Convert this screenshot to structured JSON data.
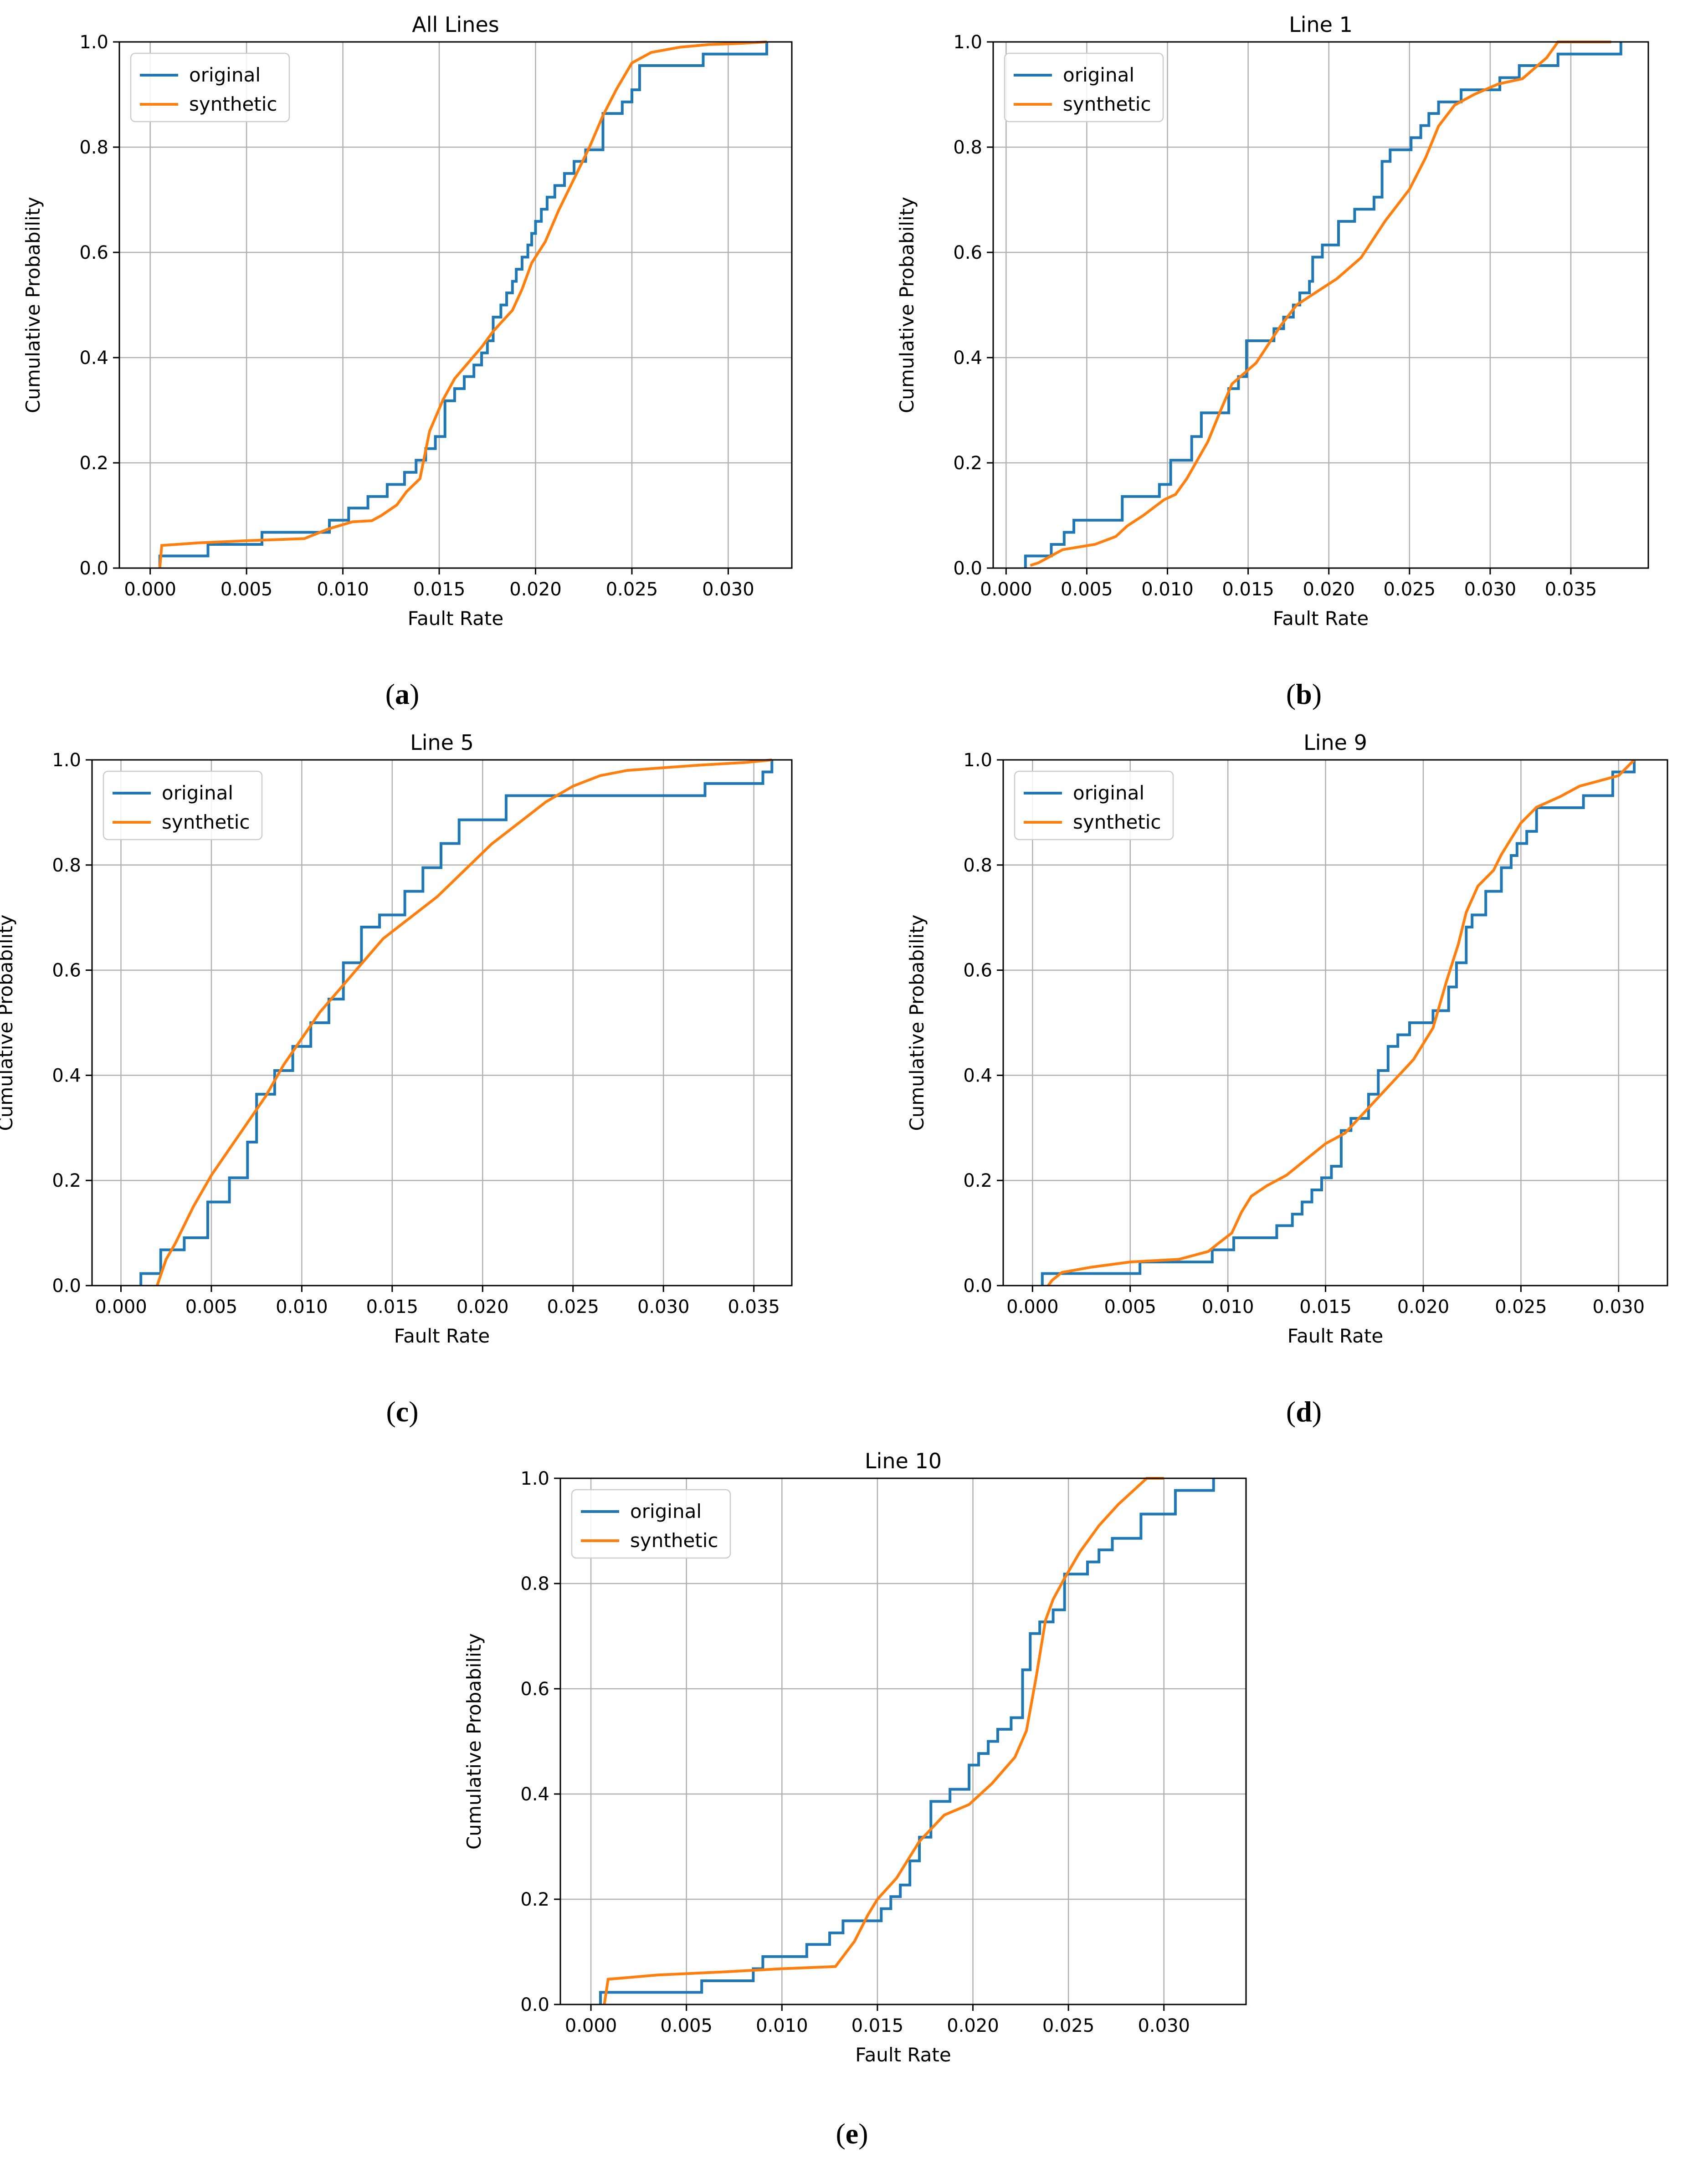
{
  "figure": {
    "panel_labels": [
      {
        "open": "(",
        "letter": "a",
        "close": ")"
      },
      {
        "open": "(",
        "letter": "b",
        "close": ")"
      },
      {
        "open": "(",
        "letter": "c",
        "close": ")"
      },
      {
        "open": "(",
        "letter": "d",
        "close": ")"
      },
      {
        "open": "(",
        "letter": "e",
        "close": ")"
      }
    ]
  },
  "colors": {
    "original": "#1f77b4",
    "synthetic": "#ff7f0e",
    "grid": "#b0b0b0"
  },
  "chart_data": [
    {
      "type": "line",
      "title": "All Lines",
      "xlabel": "Fault Rate",
      "ylabel": "Cumulative Probability",
      "xlim": [
        -0.0016,
        0.0333
      ],
      "ylim": [
        0.0,
        1.0
      ],
      "xticks": [
        0.0,
        0.005,
        0.01,
        0.015,
        0.02,
        0.025,
        0.03
      ],
      "xtick_labels": [
        "0.000",
        "0.005",
        "0.010",
        "0.015",
        "0.020",
        "0.025",
        "0.030"
      ],
      "yticks": [
        0.0,
        0.2,
        0.4,
        0.6,
        0.8,
        1.0
      ],
      "ytick_labels": [
        "0.0",
        "0.2",
        "0.4",
        "0.6",
        "0.8",
        "1.0"
      ],
      "grid": true,
      "legend": "top-left",
      "series": [
        {
          "name": "original",
          "style": "step",
          "x": [
            0.0005,
            0.0005,
            0.003,
            0.0058,
            0.0093,
            0.0103,
            0.0113,
            0.0123,
            0.0132,
            0.0138,
            0.0143,
            0.0148,
            0.0153,
            0.0158,
            0.0163,
            0.0168,
            0.0172,
            0.0175,
            0.0178,
            0.0182,
            0.0185,
            0.0188,
            0.019,
            0.0193,
            0.0196,
            0.0198,
            0.02,
            0.0203,
            0.0206,
            0.021,
            0.0215,
            0.022,
            0.0226,
            0.0235,
            0.0245,
            0.025,
            0.0254,
            0.0287,
            0.032
          ],
          "y": [
            0.0,
            0.023,
            0.045,
            0.068,
            0.091,
            0.114,
            0.136,
            0.159,
            0.182,
            0.205,
            0.227,
            0.25,
            0.318,
            0.341,
            0.364,
            0.386,
            0.409,
            0.432,
            0.477,
            0.5,
            0.523,
            0.545,
            0.568,
            0.591,
            0.614,
            0.636,
            0.659,
            0.682,
            0.705,
            0.727,
            0.75,
            0.773,
            0.795,
            0.864,
            0.886,
            0.909,
            0.955,
            0.977,
            1.0
          ]
        },
        {
          "name": "synthetic",
          "style": "line",
          "x": [
            0.0005,
            0.0006,
            0.0025,
            0.005,
            0.008,
            0.0093,
            0.0105,
            0.0115,
            0.012,
            0.0128,
            0.0133,
            0.014,
            0.0145,
            0.0152,
            0.0158,
            0.0165,
            0.0172,
            0.0178,
            0.0183,
            0.0188,
            0.0193,
            0.0198,
            0.0205,
            0.0212,
            0.022,
            0.0228,
            0.0235,
            0.0242,
            0.025,
            0.026,
            0.0275,
            0.029,
            0.0305,
            0.032
          ],
          "y": [
            0.0,
            0.043,
            0.048,
            0.052,
            0.056,
            0.075,
            0.088,
            0.09,
            0.1,
            0.12,
            0.145,
            0.17,
            0.26,
            0.32,
            0.36,
            0.39,
            0.42,
            0.45,
            0.47,
            0.49,
            0.53,
            0.58,
            0.62,
            0.68,
            0.74,
            0.8,
            0.86,
            0.91,
            0.96,
            0.98,
            0.99,
            0.995,
            0.997,
            1.0
          ]
        }
      ]
    },
    {
      "type": "line",
      "title": "Line 1",
      "xlabel": "Fault Rate",
      "ylabel": "Cumulative Probability",
      "xlim": [
        -0.0008,
        0.0398
      ],
      "ylim": [
        0.0,
        1.0
      ],
      "xticks": [
        0.0,
        0.005,
        0.01,
        0.015,
        0.02,
        0.025,
        0.03,
        0.035
      ],
      "xtick_labels": [
        "0.000",
        "0.005",
        "0.010",
        "0.015",
        "0.020",
        "0.025",
        "0.030",
        "0.035"
      ],
      "yticks": [
        0.0,
        0.2,
        0.4,
        0.6,
        0.8,
        1.0
      ],
      "ytick_labels": [
        "0.0",
        "0.2",
        "0.4",
        "0.6",
        "0.8",
        "1.0"
      ],
      "grid": true,
      "legend": "top-left",
      "series": [
        {
          "name": "original",
          "style": "step",
          "x": [
            0.0012,
            0.0012,
            0.0028,
            0.0036,
            0.0042,
            0.0072,
            0.0095,
            0.0102,
            0.0115,
            0.0121,
            0.0138,
            0.0144,
            0.0149,
            0.0166,
            0.0172,
            0.0178,
            0.0182,
            0.0188,
            0.019,
            0.0196,
            0.0206,
            0.0216,
            0.0228,
            0.0233,
            0.0238,
            0.0251,
            0.0257,
            0.0262,
            0.0268,
            0.0282,
            0.0306,
            0.0318,
            0.0342,
            0.0365,
            0.0381
          ],
          "y": [
            0.0,
            0.023,
            0.045,
            0.068,
            0.091,
            0.136,
            0.159,
            0.205,
            0.25,
            0.295,
            0.341,
            0.364,
            0.432,
            0.455,
            0.477,
            0.5,
            0.523,
            0.545,
            0.591,
            0.614,
            0.659,
            0.682,
            0.705,
            0.773,
            0.795,
            0.818,
            0.841,
            0.864,
            0.886,
            0.909,
            0.932,
            0.955,
            0.977,
            0.977,
            1.0
          ]
        },
        {
          "name": "synthetic",
          "style": "line",
          "x": [
            0.0015,
            0.002,
            0.0035,
            0.0055,
            0.0068,
            0.0075,
            0.0085,
            0.0098,
            0.0105,
            0.0112,
            0.0125,
            0.0133,
            0.014,
            0.0155,
            0.017,
            0.018,
            0.019,
            0.0205,
            0.022,
            0.0235,
            0.025,
            0.026,
            0.0268,
            0.0278,
            0.029,
            0.0305,
            0.032,
            0.0335,
            0.0342,
            0.036,
            0.0375
          ],
          "y": [
            0.005,
            0.01,
            0.035,
            0.045,
            0.06,
            0.08,
            0.1,
            0.13,
            0.14,
            0.17,
            0.24,
            0.3,
            0.35,
            0.39,
            0.46,
            0.5,
            0.52,
            0.55,
            0.59,
            0.66,
            0.72,
            0.78,
            0.84,
            0.88,
            0.9,
            0.92,
            0.93,
            0.97,
            1.0,
            1.0,
            1.0
          ]
        }
      ]
    },
    {
      "type": "line",
      "title": "Line 5",
      "xlabel": "Fault Rate",
      "ylabel": "Cumulative Probability",
      "xlim": [
        -0.0016,
        0.0371
      ],
      "ylim": [
        0.0,
        1.0
      ],
      "xticks": [
        0.0,
        0.005,
        0.01,
        0.015,
        0.02,
        0.025,
        0.03,
        0.035
      ],
      "xtick_labels": [
        "0.000",
        "0.005",
        "0.010",
        "0.015",
        "0.020",
        "0.025",
        "0.030",
        "0.035"
      ],
      "yticks": [
        0.0,
        0.2,
        0.4,
        0.6,
        0.8,
        1.0
      ],
      "ytick_labels": [
        "0.0",
        "0.2",
        "0.4",
        "0.6",
        "0.8",
        "1.0"
      ],
      "grid": true,
      "legend": "top-left",
      "series": [
        {
          "name": "original",
          "style": "step",
          "x": [
            0.0011,
            0.0011,
            0.0022,
            0.0035,
            0.0048,
            0.006,
            0.007,
            0.0075,
            0.0085,
            0.0095,
            0.0105,
            0.0115,
            0.0123,
            0.0133,
            0.0143,
            0.0157,
            0.0167,
            0.0177,
            0.0187,
            0.0213,
            0.0323,
            0.0355,
            0.036
          ],
          "y": [
            0.0,
            0.023,
            0.068,
            0.091,
            0.159,
            0.205,
            0.273,
            0.364,
            0.409,
            0.455,
            0.5,
            0.545,
            0.614,
            0.682,
            0.705,
            0.75,
            0.795,
            0.841,
            0.886,
            0.932,
            0.955,
            0.977,
            1.0
          ]
        },
        {
          "name": "synthetic",
          "style": "line",
          "x": [
            0.002,
            0.0025,
            0.003,
            0.004,
            0.005,
            0.006,
            0.007,
            0.008,
            0.009,
            0.01,
            0.011,
            0.012,
            0.013,
            0.0145,
            0.016,
            0.0175,
            0.019,
            0.0205,
            0.022,
            0.0235,
            0.025,
            0.0265,
            0.028,
            0.03,
            0.032,
            0.0345,
            0.036
          ],
          "y": [
            0.0,
            0.05,
            0.08,
            0.15,
            0.21,
            0.26,
            0.31,
            0.36,
            0.42,
            0.47,
            0.52,
            0.56,
            0.6,
            0.66,
            0.7,
            0.74,
            0.79,
            0.84,
            0.88,
            0.92,
            0.95,
            0.97,
            0.98,
            0.985,
            0.99,
            0.995,
            1.0
          ]
        }
      ]
    },
    {
      "type": "line",
      "title": "Line 9",
      "xlabel": "Fault Rate",
      "ylabel": "Cumulative Probability",
      "xlim": [
        -0.0015,
        0.0325
      ],
      "ylim": [
        0.0,
        1.0
      ],
      "xticks": [
        0.0,
        0.005,
        0.01,
        0.015,
        0.02,
        0.025,
        0.03
      ],
      "xtick_labels": [
        "0.000",
        "0.005",
        "0.010",
        "0.015",
        "0.020",
        "0.025",
        "0.030"
      ],
      "yticks": [
        0.0,
        0.2,
        0.4,
        0.6,
        0.8,
        1.0
      ],
      "ytick_labels": [
        "0.0",
        "0.2",
        "0.4",
        "0.6",
        "0.8",
        "1.0"
      ],
      "grid": true,
      "legend": "top-left",
      "series": [
        {
          "name": "original",
          "style": "step",
          "x": [
            0.0005,
            0.0005,
            0.0055,
            0.0092,
            0.0103,
            0.0125,
            0.0133,
            0.0138,
            0.0143,
            0.0148,
            0.0153,
            0.0158,
            0.0163,
            0.0172,
            0.0177,
            0.0182,
            0.0187,
            0.0193,
            0.0198,
            0.0205,
            0.0213,
            0.0217,
            0.0222,
            0.0225,
            0.0232,
            0.024,
            0.0245,
            0.0248,
            0.0253,
            0.0258,
            0.0282,
            0.0297,
            0.0308
          ],
          "y": [
            0.0,
            0.023,
            0.045,
            0.068,
            0.091,
            0.114,
            0.136,
            0.159,
            0.182,
            0.205,
            0.227,
            0.295,
            0.318,
            0.364,
            0.409,
            0.455,
            0.477,
            0.5,
            0.5,
            0.523,
            0.568,
            0.614,
            0.682,
            0.705,
            0.75,
            0.795,
            0.818,
            0.841,
            0.864,
            0.909,
            0.932,
            0.977,
            1.0
          ]
        },
        {
          "name": "synthetic",
          "style": "line",
          "x": [
            0.0008,
            0.001,
            0.0015,
            0.003,
            0.005,
            0.0075,
            0.009,
            0.0095,
            0.0102,
            0.0107,
            0.0112,
            0.012,
            0.013,
            0.014,
            0.015,
            0.016,
            0.017,
            0.018,
            0.019,
            0.0195,
            0.0205,
            0.0212,
            0.0218,
            0.0222,
            0.0228,
            0.0236,
            0.024,
            0.0245,
            0.025,
            0.0258,
            0.027,
            0.028,
            0.03,
            0.0308
          ],
          "y": [
            0.0,
            0.01,
            0.025,
            0.035,
            0.045,
            0.05,
            0.065,
            0.08,
            0.1,
            0.14,
            0.17,
            0.19,
            0.21,
            0.24,
            0.27,
            0.29,
            0.33,
            0.37,
            0.41,
            0.43,
            0.49,
            0.58,
            0.65,
            0.71,
            0.76,
            0.79,
            0.82,
            0.85,
            0.88,
            0.91,
            0.93,
            0.95,
            0.97,
            1.0
          ]
        }
      ]
    },
    {
      "type": "line",
      "title": "Line 10",
      "xlabel": "Fault Rate",
      "ylabel": "Cumulative Probability",
      "xlim": [
        -0.0016,
        0.0343
      ],
      "ylim": [
        0.0,
        1.0
      ],
      "xticks": [
        0.0,
        0.005,
        0.01,
        0.015,
        0.02,
        0.025,
        0.03
      ],
      "xtick_labels": [
        "0.000",
        "0.005",
        "0.010",
        "0.015",
        "0.020",
        "0.025",
        "0.030"
      ],
      "yticks": [
        0.0,
        0.2,
        0.4,
        0.6,
        0.8,
        1.0
      ],
      "ytick_labels": [
        "0.0",
        "0.2",
        "0.4",
        "0.6",
        "0.8",
        "1.0"
      ],
      "grid": true,
      "legend": "top-left",
      "series": [
        {
          "name": "original",
          "style": "step",
          "x": [
            0.0005,
            0.0005,
            0.003,
            0.0058,
            0.0085,
            0.009,
            0.0113,
            0.0125,
            0.0132,
            0.0152,
            0.0157,
            0.0162,
            0.0167,
            0.0172,
            0.0178,
            0.0188,
            0.0198,
            0.0203,
            0.0208,
            0.0213,
            0.022,
            0.0226,
            0.023,
            0.0235,
            0.0242,
            0.0248,
            0.0254,
            0.026,
            0.0266,
            0.0273,
            0.0288,
            0.0306,
            0.0326
          ],
          "y": [
            0.0,
            0.023,
            0.023,
            0.045,
            0.068,
            0.091,
            0.114,
            0.136,
            0.159,
            0.182,
            0.205,
            0.227,
            0.273,
            0.318,
            0.386,
            0.409,
            0.455,
            0.477,
            0.5,
            0.523,
            0.545,
            0.636,
            0.705,
            0.727,
            0.75,
            0.818,
            0.818,
            0.841,
            0.864,
            0.886,
            0.932,
            0.977,
            1.0
          ]
        },
        {
          "name": "synthetic",
          "style": "line",
          "x": [
            0.0007,
            0.0009,
            0.0035,
            0.007,
            0.01,
            0.0128,
            0.0138,
            0.0145,
            0.015,
            0.016,
            0.0172,
            0.0185,
            0.0198,
            0.021,
            0.0222,
            0.0228,
            0.0233,
            0.0238,
            0.0242,
            0.0248,
            0.0256,
            0.0266,
            0.0276,
            0.0285,
            0.0291,
            0.03
          ],
          "y": [
            0.0,
            0.048,
            0.056,
            0.062,
            0.068,
            0.072,
            0.12,
            0.17,
            0.2,
            0.24,
            0.31,
            0.36,
            0.38,
            0.42,
            0.47,
            0.52,
            0.62,
            0.73,
            0.77,
            0.81,
            0.86,
            0.91,
            0.95,
            0.98,
            1.0,
            1.0
          ]
        }
      ]
    }
  ]
}
